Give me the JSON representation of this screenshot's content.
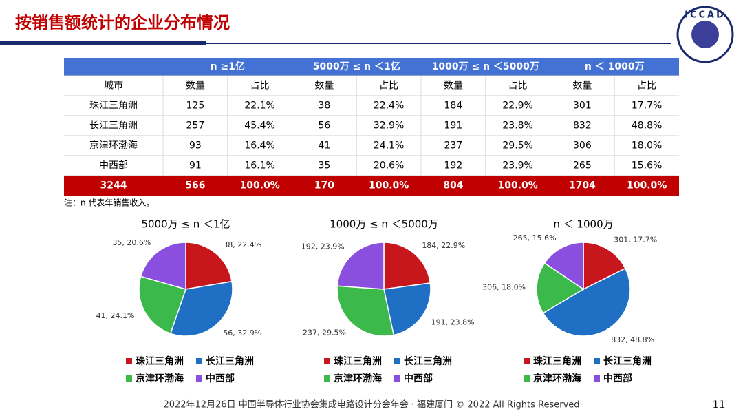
{
  "header": {
    "title": "按销售额统计的企业分布情况",
    "logo": "ICCAD"
  },
  "table": {
    "groups": [
      "n ≥1亿",
      "5000万 ≤ n ＜1亿",
      "1000万 ≤ n ＜5000万",
      "n ＜ 1000万"
    ],
    "columns": [
      "城市",
      "数量",
      "占比",
      "数量",
      "占比",
      "数量",
      "占比",
      "数量",
      "占比"
    ],
    "rows": [
      [
        "珠江三角洲",
        "125",
        "22.1%",
        "38",
        "22.4%",
        "184",
        "22.9%",
        "301",
        "17.7%"
      ],
      [
        "长江三角洲",
        "257",
        "45.4%",
        "56",
        "32.9%",
        "191",
        "23.8%",
        "832",
        "48.8%"
      ],
      [
        "京津环渤海",
        "93",
        "16.4%",
        "41",
        "24.1%",
        "237",
        "29.5%",
        "306",
        "18.0%"
      ],
      [
        "中西部",
        "91",
        "16.1%",
        "35",
        "20.6%",
        "192",
        "23.9%",
        "265",
        "15.6%"
      ]
    ],
    "total": [
      "3244",
      "566",
      "100.0%",
      "170",
      "100.0%",
      "804",
      "100.0%",
      "1704",
      "100.0%"
    ]
  },
  "note": "注：n 代表年销售收入。",
  "chart_data": [
    {
      "type": "pie",
      "title": "5000万 ≤ n ＜1亿",
      "categories": [
        "珠江三角洲",
        "长江三角洲",
        "京津环渤海",
        "中西部"
      ],
      "values": [
        38,
        56,
        41,
        35
      ],
      "value_labels": [
        "38, 22.4%",
        "56, 32.9%",
        "41, 24.1%",
        "35, 20.6%"
      ],
      "colors": [
        "#c8161d",
        "#1f6fc5",
        "#3cb94b",
        "#8b4fe0"
      ]
    },
    {
      "type": "pie",
      "title": "1000万 ≤ n ＜5000万",
      "categories": [
        "珠江三角洲",
        "长江三角洲",
        "京津环渤海",
        "中西部"
      ],
      "values": [
        184,
        191,
        237,
        192
      ],
      "value_labels": [
        "184, 22.9%",
        "191, 23.8%",
        "237, 29.5%",
        "192, 23.9%"
      ],
      "colors": [
        "#c8161d",
        "#1f6fc5",
        "#3cb94b",
        "#8b4fe0"
      ]
    },
    {
      "type": "pie",
      "title": "n ＜ 1000万",
      "categories": [
        "珠江三角洲",
        "长江三角洲",
        "京津环渤海",
        "中西部"
      ],
      "values": [
        301,
        832,
        306,
        265
      ],
      "value_labels": [
        "301, 17.7%",
        "832, 48.8%",
        "306, 18.0%",
        "265, 15.6%"
      ],
      "colors": [
        "#c8161d",
        "#1f6fc5",
        "#3cb94b",
        "#8b4fe0"
      ]
    }
  ],
  "footer": {
    "text": "2022年12月26日 中国半导体行业协会集成电路设计分会年会 · 福建厦门 © 2022 All Rights Reserved",
    "page": "11"
  }
}
